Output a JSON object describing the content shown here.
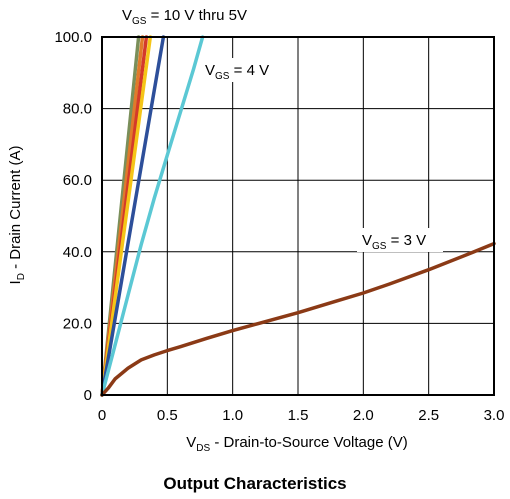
{
  "chart_data": {
    "type": "line",
    "title": "Output Characteristics",
    "xlabel": "V_DS - Drain-to-Source Voltage (V)",
    "ylabel": "I_D - Drain Current (A)",
    "xlim": [
      0,
      3.0
    ],
    "ylim": [
      0,
      100
    ],
    "xticks": [
      0,
      0.5,
      1.0,
      1.5,
      2.0,
      2.5,
      3.0
    ],
    "xtick_labels": [
      "0",
      "0.5",
      "1.0",
      "1.5",
      "2.0",
      "2.5",
      "3.0"
    ],
    "yticks": [
      0,
      20,
      40,
      60,
      80,
      100
    ],
    "ytick_labels": [
      "0",
      "20.0",
      "40.0",
      "60.0",
      "80.0",
      "100.0"
    ],
    "grid": true,
    "legend": "none",
    "annotations": [
      {
        "main": "V",
        "sub": "GS",
        "rest": " = 10 V thru 5V"
      },
      {
        "main": "V",
        "sub": "GS",
        "rest": " = 4 V"
      },
      {
        "main": "V",
        "sub": "GS",
        "rest": " = 3 V"
      }
    ],
    "series": [
      {
        "color": "#7a8f5a",
        "x": [
          0,
          0.28
        ],
        "y": [
          0,
          100
        ]
      },
      {
        "color": "#e07a2a",
        "x": [
          0,
          0.31
        ],
        "y": [
          0,
          100
        ]
      },
      {
        "color": "#d43a2a",
        "x": [
          0,
          0.34
        ],
        "y": [
          0,
          100
        ]
      },
      {
        "color": "#f5c518",
        "x": [
          0,
          0.37
        ],
        "y": [
          0,
          100
        ]
      },
      {
        "color": "#2d4f9a",
        "x": [
          0,
          0.47
        ],
        "y": [
          0,
          100
        ]
      },
      {
        "color": "#5bc8d4",
        "x": [
          0,
          0.1,
          0.2,
          0.3,
          0.4,
          0.5,
          0.6,
          0.7,
          0.77
        ],
        "y": [
          0,
          14,
          28,
          42,
          55,
          67,
          79,
          91,
          100
        ]
      },
      {
        "color": "#8b3a16",
        "x": [
          0,
          0.05,
          0.1,
          0.2,
          0.3,
          0.4,
          0.5,
          0.6,
          0.8,
          1.0,
          1.2,
          1.5,
          1.8,
          2.0,
          2.2,
          2.5,
          2.8,
          3.0
        ],
        "y": [
          0,
          2,
          4.5,
          7.5,
          9.8,
          11.2,
          12.4,
          13.5,
          15.8,
          18,
          20,
          23,
          26.3,
          28.5,
          31,
          35,
          39.3,
          42.3
        ]
      }
    ]
  }
}
